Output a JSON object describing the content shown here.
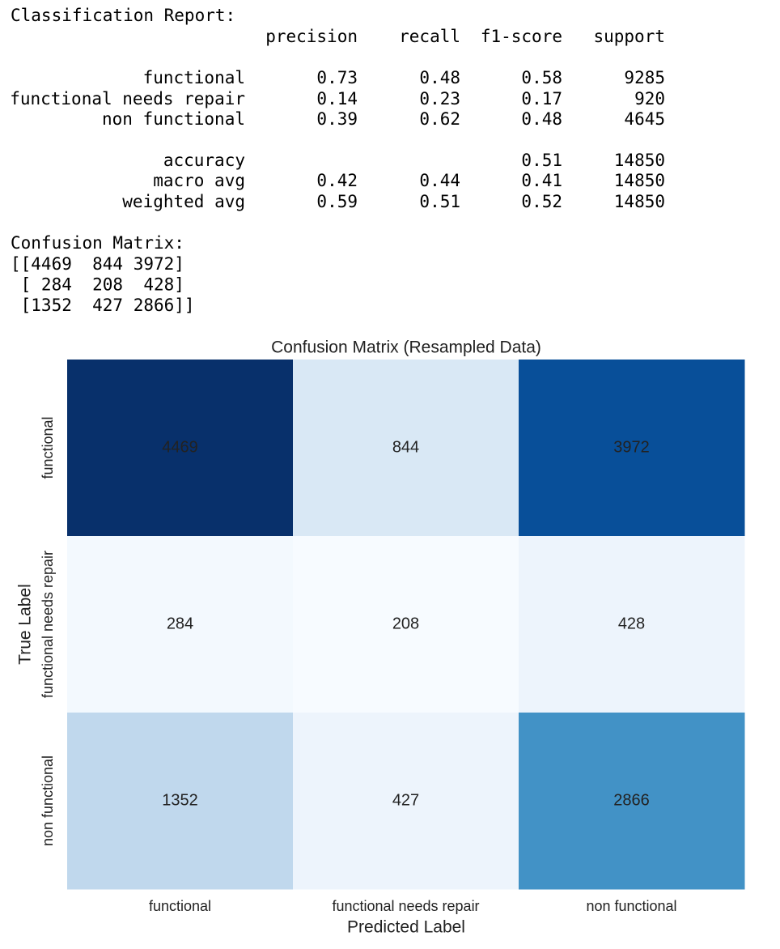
{
  "report": {
    "title": "Classification Report:",
    "columns": [
      "precision",
      "recall",
      "f1-score",
      "support"
    ],
    "rows": [
      {
        "label": "functional",
        "values": [
          0.73,
          0.48,
          0.58,
          9285
        ]
      },
      {
        "label": "functional needs repair",
        "values": [
          0.14,
          0.23,
          0.17,
          920
        ]
      },
      {
        "label": "non functional",
        "values": [
          0.39,
          0.62,
          0.48,
          4645
        ]
      },
      {
        "label": "accuracy",
        "values": [
          null,
          null,
          0.51,
          14850
        ]
      },
      {
        "label": "macro avg",
        "values": [
          0.42,
          0.44,
          0.41,
          14850
        ]
      },
      {
        "label": "weighted avg",
        "values": [
          0.59,
          0.51,
          0.52,
          14850
        ]
      }
    ]
  },
  "matrix_text": {
    "title": "Confusion Matrix:",
    "lines": [
      "[[4469  844 3972]",
      " [ 284  208  428]",
      " [1352  427 2866]]"
    ]
  },
  "chart_data": {
    "type": "heatmap",
    "title": "Confusion Matrix (Resampled Data)",
    "xlabel": "Predicted Label",
    "ylabel": "True Label",
    "x_categories": [
      "functional",
      "functional needs repair",
      "non functional"
    ],
    "y_categories": [
      "functional",
      "functional needs repair",
      "non functional"
    ],
    "values": [
      [
        4469,
        844,
        3972
      ],
      [
        284,
        208,
        428
      ],
      [
        1352,
        427,
        2866
      ]
    ],
    "colors": [
      "#f7fbff",
      "#deebf7",
      "#c6dbef",
      "#9ecae1",
      "#6baed6",
      "#4292c6",
      "#2171b5",
      "#08519c",
      "#08306b"
    ]
  }
}
